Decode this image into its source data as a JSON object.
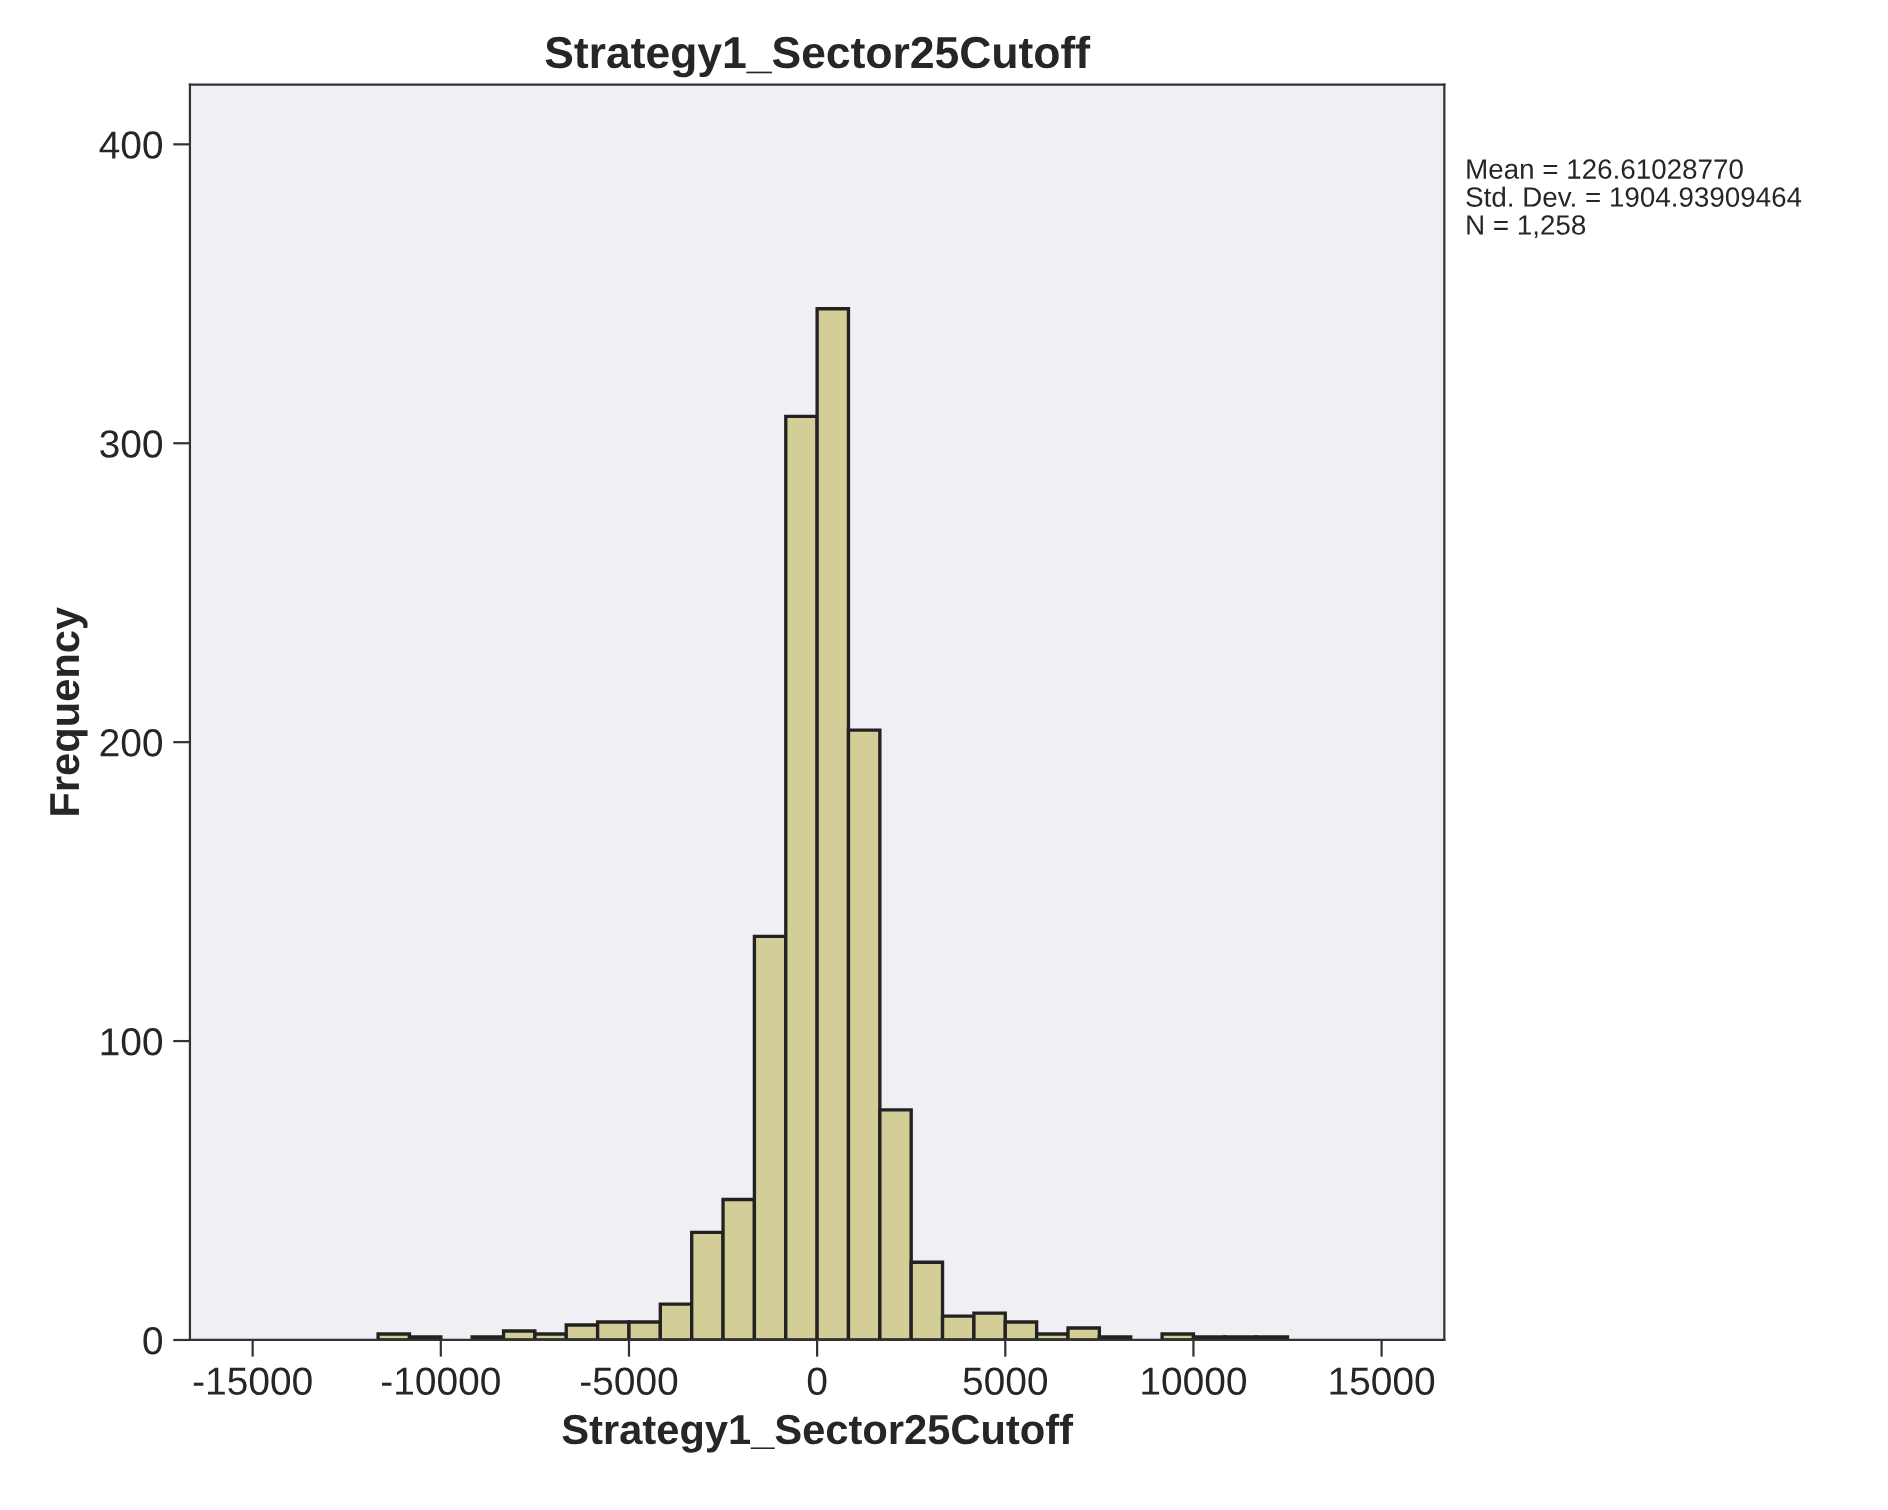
{
  "chart_data": {
    "type": "histogram",
    "title": "Strategy1_Sector25Cutoff",
    "xlabel": "Strategy1_Sector25Cutoff",
    "ylabel": "Frequency",
    "bins": [
      -11667,
      -10833,
      -10000,
      -9167,
      -8333,
      -7500,
      -6667,
      -5833,
      -5000,
      -4167,
      -3333,
      -2500,
      -1667,
      -833,
      0,
      833,
      1667,
      2500,
      3333,
      4167,
      5000,
      5833,
      6667,
      7500,
      8333,
      9167,
      10000,
      10833,
      11667,
      12500
    ],
    "values": [
      2,
      1,
      0,
      1,
      3,
      2,
      5,
      6,
      6,
      12,
      36,
      47,
      135,
      309,
      345,
      204,
      77,
      26,
      8,
      9,
      6,
      2,
      4,
      1,
      0,
      2,
      1,
      1,
      1
    ],
    "color": "#d3ce98",
    "xlim": [
      -16667,
      16667
    ],
    "xticks": [
      -15000,
      -10000,
      -5000,
      0,
      5000,
      10000,
      15000
    ],
    "ylim": [
      0,
      420
    ],
    "yticks": [
      0,
      100,
      200,
      300,
      400
    ],
    "annotations": [
      "Mean = 126.61028770",
      "Std. Dev. = 1904.93909464",
      "N = 1,258"
    ],
    "grid": false,
    "legend": false
  }
}
